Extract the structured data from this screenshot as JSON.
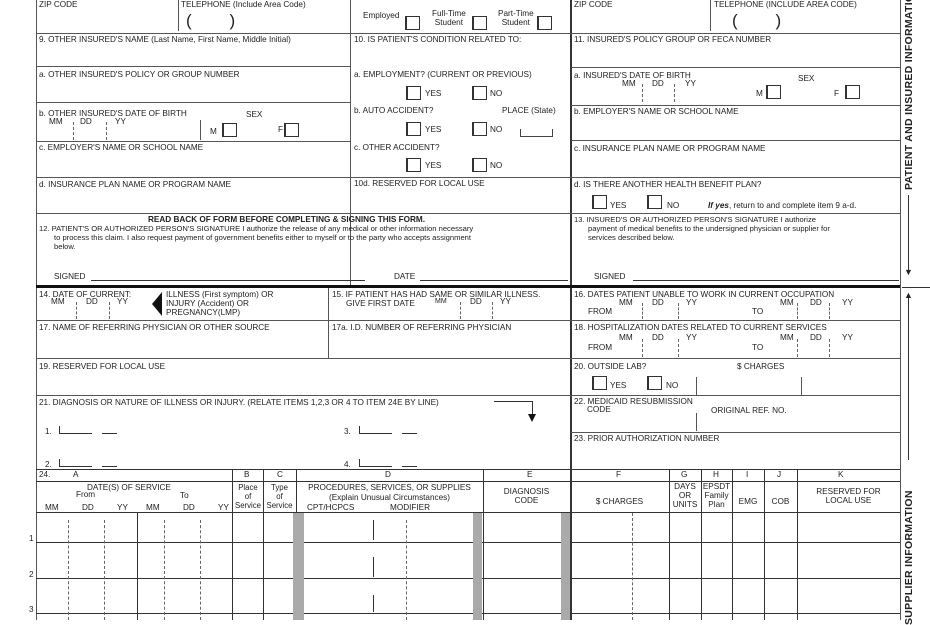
{
  "top": {
    "zip_left": "ZIP CODE",
    "tel_left": "TELEPHONE (Include Area Code)",
    "paren": "(        )",
    "employed": "Employed",
    "fulltime": "Full-Time\nStudent",
    "parttime": "Part-Time\nStudent",
    "zip_right": "ZIP CODE",
    "tel_right": "TELEPHONE (INCLUDE AREA CODE)"
  },
  "left": {
    "f9": "9. OTHER INSURED'S NAME (Last Name, First Name, Middle Initial)",
    "f9a": "a. OTHER INSURED'S POLICY OR GROUP NUMBER",
    "f9b": "b. OTHER INSURED'S DATE OF BIRTH",
    "sex": "SEX",
    "mm": "MM",
    "dd": "DD",
    "yy": "YY",
    "m": "M",
    "f": "F",
    "f9c": "c. EMPLOYER'S NAME OR SCHOOL NAME",
    "f9d": "d. INSURANCE PLAN NAME OR PROGRAM NAME"
  },
  "middle": {
    "f10": "10. IS PATIENT'S CONDITION RELATED TO:",
    "f10a": "a. EMPLOYMENT? (CURRENT OR PREVIOUS)",
    "f10b": "b. AUTO ACCIDENT?",
    "place": "PLACE (State)",
    "f10c": "c. OTHER ACCIDENT?",
    "f10d": "10d. RESERVED FOR LOCAL USE",
    "yes": "YES",
    "no": "NO"
  },
  "right": {
    "f11": "11. INSURED'S POLICY GROUP OR FECA NUMBER",
    "f11a": "a. INSURED'S DATE OF BIRTH",
    "f11b": "b. EMPLOYER'S NAME OR SCHOOL NAME",
    "f11c": "c. INSURANCE PLAN NAME OR PROGRAM NAME",
    "f11d": "d. IS THERE ANOTHER HEALTH BENEFIT PLAN?",
    "ifyes_b": "If yes",
    "ifyes": ", return to and complete item 9 a-d."
  },
  "sig": {
    "readback": "READ BACK OF FORM BEFORE COMPLETING & SIGNING THIS FORM.",
    "f12_1": "12. PATIENT'S OR AUTHORIZED PERSON'S SIGNATURE  I authorize the release of any medical or other information necessary",
    "f12_2": "to process this claim. I also request payment of government benefits either to myself or to the party who accepts assignment",
    "f12_3": "below.",
    "signed": "SIGNED",
    "date": "DATE",
    "f13_1": "13. INSURED'S OR AUTHORIZED PERSON'S SIGNATURE I authorize",
    "f13_2": "payment of medical benefits to the undersigned physician or supplier for",
    "f13_3": "services described below."
  },
  "supplier": {
    "f14": "14. DATE OF CURRENT:",
    "illness": "ILLNESS (First symptom) OR",
    "injury": "INJURY (Accident) OR",
    "preg": "PREGNANCY(LMP)",
    "f15": "15. IF PATIENT HAS HAD SAME OR SIMILAR ILLNESS.",
    "f15b": "GIVE FIRST DATE",
    "f16": "16. DATES PATIENT UNABLE TO WORK IN CURRENT OCCUPATION",
    "from": "FROM",
    "to": "TO",
    "f17": "17. NAME OF REFERRING PHYSICIAN OR OTHER SOURCE",
    "f17a": "17a. I.D. NUMBER OF REFERRING PHYSICIAN",
    "f18": "18. HOSPITALIZATION DATES RELATED TO CURRENT SERVICES",
    "f19": "19. RESERVED FOR LOCAL USE",
    "f20": "20. OUTSIDE LAB?",
    "charges": "$ CHARGES",
    "f21": "21. DIAGNOSIS OR NATURE OF ILLNESS OR INJURY. (RELATE ITEMS 1,2,3 OR 4 TO ITEM 24E BY LINE)",
    "d1": "1.",
    "d2": "2.",
    "d3": "3.",
    "d4": "4.",
    "f22": "22. MEDICAID RESUBMISSION",
    "f22b": "CODE",
    "origref": "ORIGINAL REF. NO.",
    "f23": "23. PRIOR AUTHORIZATION NUMBER"
  },
  "table": {
    "n24": "24.",
    "A": "A",
    "B": "B",
    "C": "C",
    "D": "D",
    "E": "E",
    "F": "F",
    "G": "G",
    "H": "H",
    "I": "I",
    "J": "J",
    "K": "K",
    "dos": "DATE(S) OF SERVICE",
    "from": "From",
    "to": "To",
    "mm": "MM",
    "dd": "DD",
    "yy": "YY",
    "place": "Place\nof\nService",
    "type": "Type\nof\nService",
    "proc": "PROCEDURES, SERVICES, OR SUPPLIES",
    "explain": "(Explain Unusual Circumstances)",
    "cpt": "CPT/HCPCS",
    "mod": "MODIFIER",
    "diag": "DIAGNOSIS\nCODE",
    "charges": "$ CHARGES",
    "days": "DAYS\nOR\nUNITS",
    "epsdt": "EPSDT\nFamily\nPlan",
    "emg": "EMG",
    "cob": "COB",
    "reserved": "RESERVED FOR\nLOCAL USE",
    "rows": [
      "1",
      "2",
      "3"
    ]
  },
  "side": {
    "patient": "PATIENT AND INSURED INFORMATION",
    "supplier": "SUPPLIER INFORMATION"
  }
}
